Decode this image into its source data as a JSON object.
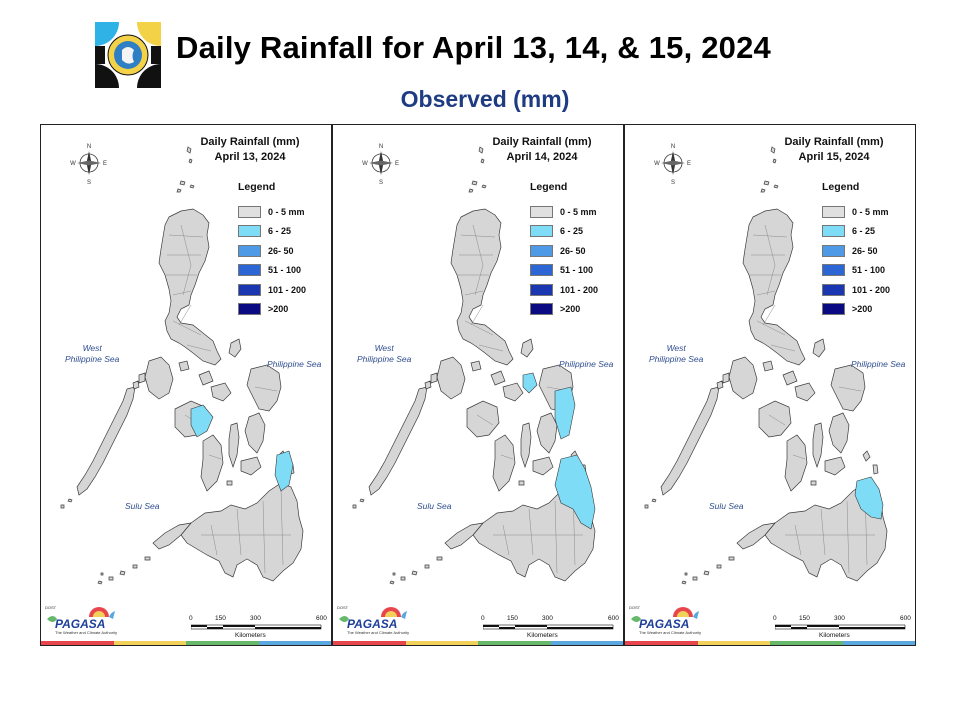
{
  "header": {
    "title": "Daily Rainfall for April 13, 14, & 15, 2024",
    "subtitle": "Observed (mm)"
  },
  "legend": {
    "title": "Legend",
    "items": [
      {
        "label": "0 - 5 mm",
        "color": "#e0e0e0"
      },
      {
        "label": "6 - 25",
        "color": "#7fdcf7"
      },
      {
        "label": "26- 50",
        "color": "#4f9ae6"
      },
      {
        "label": "51 - 100",
        "color": "#2b66d4"
      },
      {
        "label": "101 - 200",
        "color": "#1a36b0"
      },
      {
        "label": ">200",
        "color": "#0a0a82"
      }
    ]
  },
  "map_labels": {
    "west_sea_line1": "West",
    "west_sea_line2": "Philippine Sea",
    "philippine_sea": "Philippine Sea",
    "sulu_sea": "Sulu Sea",
    "compass_n": "N",
    "compass_s": "S",
    "compass_e": "E",
    "compass_w": "W"
  },
  "scale": {
    "ticks": [
      "0",
      "150",
      "300",
      "600"
    ],
    "unit": "Kilometers"
  },
  "agency": {
    "name": "PAGASA",
    "year": "DOST",
    "tagline": "The Weather and Climate Authority"
  },
  "brand_colors": {
    "title_blue": "#1f3b82",
    "strip": [
      "#e8464c",
      "#f2d15a",
      "#68b86c",
      "#5aa8e0"
    ]
  },
  "panels": [
    {
      "title_line1": "Daily Rainfall (mm)",
      "title_line2": "April 13, 2024",
      "rain_6_25": [
        "mindoro-panay-strait",
        "eastern-samar-leyte"
      ]
    },
    {
      "title_line1": "Daily Rainfall (mm)",
      "title_line2": "April 14, 2024",
      "rain_6_25": [
        "bicol-catanduanes",
        "eastern-samar",
        "eastern-mindanao"
      ]
    },
    {
      "title_line1": "Daily Rainfall (mm)",
      "title_line2": "April 15, 2024",
      "rain_6_25": [
        "eastern-mindanao"
      ]
    }
  ]
}
